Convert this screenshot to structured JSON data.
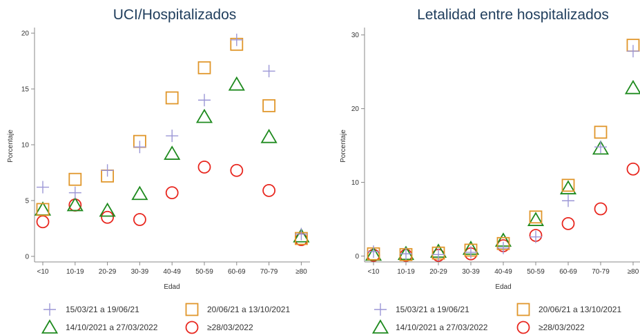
{
  "colors": {
    "series1": "#9b96d6",
    "series2": "#e0962a",
    "series3": "#1e8a1e",
    "series4": "#e8261e",
    "axis": "#888888"
  },
  "legend": [
    {
      "name": "15/03/21 a 19/06/21",
      "marker": "plus-icon"
    },
    {
      "name": "20/06/21 a 13/10/2021",
      "marker": "square-icon"
    },
    {
      "name": "14/10/2021 a 27/03/2022",
      "marker": "triangle-icon"
    },
    {
      "name": "≥28/03/2022",
      "marker": "circle-icon"
    }
  ],
  "chart_data": [
    {
      "type": "scatter",
      "title": "UCI/Hospitalizados",
      "xlabel": "Edad",
      "ylabel": "Porcentaje",
      "categories": [
        "<10",
        "10-19",
        "20-29",
        "30-39",
        "40-49",
        "50-59",
        "60-69",
        "70-79",
        "≥80"
      ],
      "ylim": [
        -0.5,
        20.5
      ],
      "yticks": [
        0,
        5,
        10,
        15,
        20
      ],
      "grid": false,
      "legend_position": "bottom",
      "series": [
        {
          "name": "15/03/21 a 19/06/21",
          "marker": "plus",
          "values": [
            6.2,
            5.7,
            7.7,
            9.8,
            10.8,
            14.0,
            19.4,
            16.6,
            2.0
          ]
        },
        {
          "name": "20/06/21 a 13/10/2021",
          "marker": "square",
          "values": [
            4.2,
            6.9,
            7.2,
            10.3,
            14.2,
            16.9,
            19.0,
            13.5,
            1.6
          ]
        },
        {
          "name": "14/10/2021 a 27/03/2022",
          "marker": "triangle",
          "values": [
            4.2,
            4.6,
            4.1,
            5.6,
            9.2,
            12.5,
            15.4,
            10.7,
            1.8
          ]
        },
        {
          "name": "≥28/03/2022",
          "marker": "circle",
          "values": [
            3.1,
            4.6,
            3.5,
            3.3,
            5.7,
            8.0,
            7.7,
            5.9,
            1.5
          ]
        }
      ]
    },
    {
      "type": "scatter",
      "title": "Letalidad entre hospitalizados",
      "xlabel": "Edad",
      "ylabel": "Porcentaje",
      "categories": [
        "<10",
        "10-19",
        "20-29",
        "30-39",
        "40-49",
        "50-59",
        "60-69",
        "70-79",
        "≥80"
      ],
      "ylim": [
        -0.8,
        31.0
      ],
      "yticks": [
        0,
        10,
        20,
        30
      ],
      "grid": false,
      "legend_position": "bottom",
      "series": [
        {
          "name": "15/03/21 a 19/06/21",
          "marker": "plus",
          "values": [
            0.6,
            0.3,
            0.2,
            0.5,
            1.1,
            2.6,
            7.5,
            14.8,
            27.8
          ]
        },
        {
          "name": "20/06/21 a 13/10/2021",
          "marker": "square",
          "values": [
            0.3,
            0.2,
            0.4,
            0.8,
            1.7,
            5.3,
            9.6,
            16.8,
            28.6
          ]
        },
        {
          "name": "14/10/2021 a 27/03/2022",
          "marker": "triangle",
          "values": [
            0.2,
            0.3,
            0.6,
            1.0,
            2.1,
            4.9,
            9.2,
            14.6,
            22.8
          ]
        },
        {
          "name": "≥28/03/2022",
          "marker": "circle",
          "values": [
            0.1,
            0.1,
            0.1,
            0.3,
            1.4,
            2.8,
            4.4,
            6.4,
            11.8
          ]
        }
      ]
    }
  ]
}
